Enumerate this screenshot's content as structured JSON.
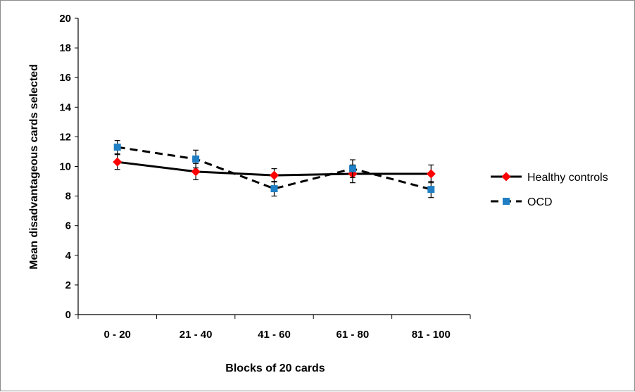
{
  "chart_data": {
    "type": "line",
    "title": "",
    "xlabel": "Blocks of 20 cards",
    "ylabel": "Mean disadvantageous cards selected",
    "categories": [
      "0 - 20",
      "21 - 40",
      "41 - 60",
      "61 - 80",
      "81 - 100"
    ],
    "ylim": [
      0,
      20
    ],
    "yticks": [
      0,
      2,
      4,
      6,
      8,
      10,
      12,
      14,
      16,
      18,
      20
    ],
    "grid": false,
    "legend_position": "right",
    "series": [
      {
        "name": "Healthy controls",
        "values": [
          10.3,
          9.65,
          9.4,
          9.5,
          9.5
        ],
        "error": [
          0.5,
          0.55,
          0.45,
          0.6,
          0.6
        ],
        "color": "#000000",
        "marker": "diamond",
        "marker_color": "#ff0000",
        "line_style": "solid"
      },
      {
        "name": "OCD",
        "values": [
          11.3,
          10.5,
          8.5,
          9.85,
          8.45
        ],
        "error": [
          0.45,
          0.6,
          0.5,
          0.6,
          0.55
        ],
        "color": "#000000",
        "marker": "square",
        "marker_color": "#1f7fc4",
        "line_style": "dashed"
      }
    ]
  }
}
